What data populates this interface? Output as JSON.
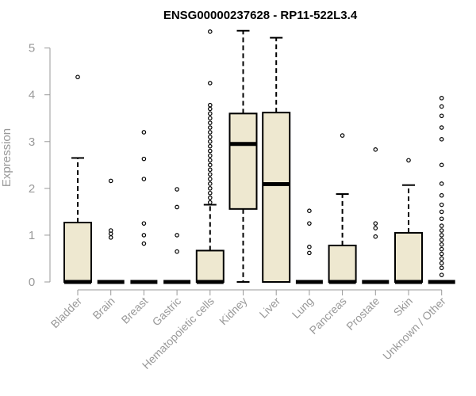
{
  "chart_data": {
    "type": "boxplot",
    "title": "ENSG00000237628 - RP11-522L3.4",
    "xlabel": "",
    "ylabel": "Expression",
    "ylim": [
      0,
      5.4
    ],
    "yticks": [
      0,
      1,
      2,
      3,
      4,
      5
    ],
    "grid": false,
    "colors": {
      "box_fill": "#EEE8D0",
      "stroke": "#000000",
      "axis": "#999999"
    },
    "categories": [
      "Bladder",
      "Brain",
      "Breast",
      "Gastric",
      "Hematopoietic cells",
      "Kidney",
      "Liver",
      "Lung",
      "Pancreas",
      "Prostate",
      "Skin",
      "Unknown / Other"
    ],
    "boxes": [
      {
        "category": "Bladder",
        "min": 0,
        "q1": 0,
        "median": 0,
        "q3": 1.27,
        "max": 2.65,
        "outliers": [
          4.38
        ]
      },
      {
        "category": "Brain",
        "min": 0,
        "q1": 0,
        "median": 0,
        "q3": 0,
        "max": 0,
        "outliers": [
          0.95,
          1.03,
          1.1,
          2.16
        ]
      },
      {
        "category": "Breast",
        "min": 0,
        "q1": 0,
        "median": 0,
        "q3": 0,
        "max": 0,
        "outliers": [
          0.82,
          1.0,
          1.25,
          2.2,
          2.63,
          3.2
        ]
      },
      {
        "category": "Gastric",
        "min": 0,
        "q1": 0,
        "median": 0,
        "q3": 0,
        "max": 0,
        "outliers": [
          0.65,
          1.0,
          1.6,
          1.98
        ]
      },
      {
        "category": "Hematopoietic cells",
        "min": 0,
        "q1": 0,
        "median": 0,
        "q3": 0.67,
        "max": 1.65,
        "outliers": [
          1.7,
          1.8,
          1.9,
          2.0,
          2.1,
          2.2,
          2.3,
          2.4,
          2.5,
          2.6,
          2.7,
          2.8,
          2.9,
          3.0,
          3.1,
          3.2,
          3.3,
          3.4,
          3.5,
          3.6,
          3.7,
          3.78,
          4.25,
          5.35
        ]
      },
      {
        "category": "Kidney",
        "min": 0,
        "q1": 1.56,
        "median": 2.95,
        "q3": 3.6,
        "max": 5.37,
        "outliers": []
      },
      {
        "category": "Liver",
        "min": 0,
        "q1": 0,
        "median": 2.09,
        "q3": 3.62,
        "max": 5.22,
        "outliers": []
      },
      {
        "category": "Lung",
        "min": 0,
        "q1": 0,
        "median": 0,
        "q3": 0,
        "max": 0,
        "outliers": [
          0.62,
          0.75,
          1.25,
          1.52
        ]
      },
      {
        "category": "Pancreas",
        "min": 0,
        "q1": 0,
        "median": 0,
        "q3": 0.78,
        "max": 1.88,
        "outliers": [
          3.13
        ]
      },
      {
        "category": "Prostate",
        "min": 0,
        "q1": 0,
        "median": 0,
        "q3": 0,
        "max": 0,
        "outliers": [
          0.97,
          1.15,
          1.25,
          2.83
        ]
      },
      {
        "category": "Skin",
        "min": 0,
        "q1": 0,
        "median": 0,
        "q3": 1.05,
        "max": 2.07,
        "outliers": [
          2.6
        ]
      },
      {
        "category": "Unknown / Other",
        "min": 0,
        "q1": 0,
        "median": 0,
        "q3": 0,
        "max": 0,
        "outliers": [
          0.15,
          0.3,
          0.4,
          0.5,
          0.6,
          0.7,
          0.8,
          0.9,
          1.0,
          1.1,
          1.2,
          1.35,
          1.5,
          1.65,
          1.85,
          2.1,
          2.5,
          3.05,
          3.3,
          3.55,
          3.75,
          3.93
        ]
      }
    ]
  }
}
